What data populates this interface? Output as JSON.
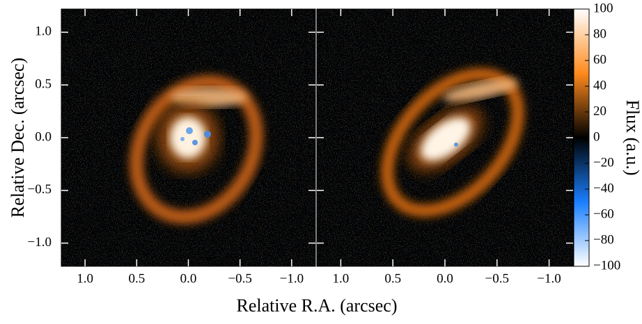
{
  "chart_data": {
    "type": "image",
    "xlabel": "Relative R.A. (arcsec)",
    "ylabel": "Relative Dec. (arcsec)",
    "panels": [
      {
        "xlim": [
          1.23,
          -1.23
        ],
        "ylim": [
          -1.22,
          1.22
        ],
        "xticks": [
          {
            "value": 1,
            "label": "1.0"
          },
          0.5,
          {
            "value": 0,
            "label": "0.0"
          },
          {
            "value": -0.5,
            "label": "−0.5"
          },
          {
            "value": -1,
            "label": "−1.0"
          }
        ],
        "yticks": [
          {
            "value": -1,
            "label": "−1.0"
          },
          {
            "value": -0.5,
            "label": "−0.5"
          },
          {
            "value": 0,
            "label": "0.0"
          },
          0.5,
          {
            "value": 1,
            "label": "1.0"
          }
        ]
      },
      {
        "xlim": [
          1.23,
          -1.23
        ],
        "ylim": [
          -1.22,
          1.22
        ],
        "xticks": [
          {
            "value": 1,
            "label": "1.0"
          },
          0.5,
          {
            "value": 0,
            "label": "0.0"
          },
          {
            "value": -0.5,
            "label": "−0.5"
          },
          {
            "value": -1,
            "label": "−1.0"
          }
        ]
      }
    ],
    "colorbar": {
      "label": "Flux (a.u.)",
      "lim": [
        -100,
        100
      ],
      "ticks": [
        {
          "value": -100,
          "label": "−100"
        },
        {
          "value": -80,
          "label": "−80"
        },
        {
          "value": -60,
          "label": "−60"
        },
        {
          "value": -40,
          "label": "−40"
        },
        {
          "value": -20,
          "label": "−20"
        },
        0,
        20,
        40,
        60,
        80,
        100
      ],
      "colors": [
        "#ffffff",
        "#1a7fff",
        "#000000",
        "#ff8a1c",
        "#ffffff"
      ]
    }
  }
}
